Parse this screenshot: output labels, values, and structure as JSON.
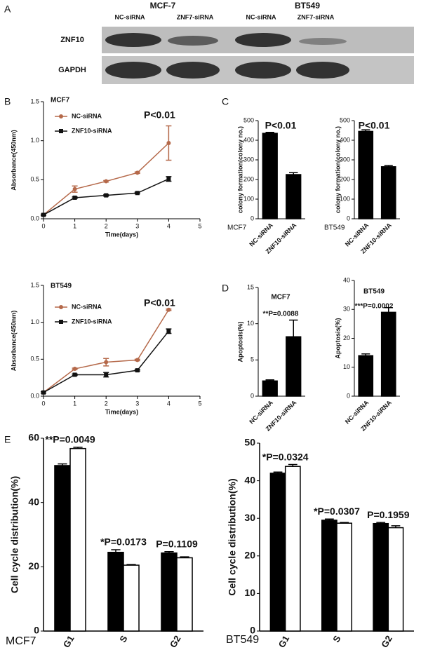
{
  "panel_labels": [
    "A",
    "B",
    "C",
    "D",
    "E"
  ],
  "blot": {
    "groups": [
      "MCF-7",
      "BT549"
    ],
    "lanes": [
      "NC-siRNA",
      "ZNF7-siRNA",
      "NC-siRNA",
      "ZNF7-siRNA"
    ],
    "rows": [
      "ZNF10",
      "GAPDH"
    ]
  },
  "chart_data": [
    {
      "type": "line",
      "title": "MCF7",
      "annotation": "P<0.01",
      "x_label": "Time(days)",
      "y_label": "Absorbance(450nm)",
      "x": [
        0,
        1,
        2,
        3,
        4
      ],
      "xlim": [
        0,
        5
      ],
      "xticks": [
        0,
        1,
        2,
        3,
        4,
        5
      ],
      "ylim": [
        0,
        1.5
      ],
      "yticks": [
        {
          "value": 0,
          "label": "0.0"
        },
        0.5,
        {
          "value": 1,
          "label": "1.0"
        },
        1.5
      ],
      "series": [
        {
          "name": "NC-siRNA",
          "color": "#b5694a",
          "marker": "circle",
          "values": [
            0.05,
            0.38,
            0.48,
            0.59,
            0.97
          ],
          "errors": [
            0.01,
            0.04,
            0.01,
            0.01,
            0.22
          ]
        },
        {
          "name": "ZNF10-siRNA",
          "color": "#111111",
          "marker": "square",
          "values": [
            0.05,
            0.27,
            0.3,
            0.33,
            0.51
          ],
          "errors": [
            0.01,
            0.01,
            0.01,
            0.01,
            0.03
          ]
        }
      ]
    },
    {
      "type": "line",
      "title": "BT549",
      "annotation": "P<0.01",
      "x_label": "Time(days)",
      "y_label": "Absorbance(450nm)",
      "x": [
        0,
        1,
        2,
        3,
        4
      ],
      "xlim": [
        0,
        5
      ],
      "xticks": [
        0,
        1,
        2,
        3,
        4,
        5
      ],
      "ylim": [
        0,
        1.5
      ],
      "yticks": [
        {
          "value": 0,
          "label": "0.0"
        },
        0.5,
        {
          "value": 1,
          "label": "1.0"
        },
        1.5
      ],
      "series": [
        {
          "name": "NC-siRNA",
          "color": "#b5694a",
          "marker": "circle",
          "values": [
            0.05,
            0.37,
            0.46,
            0.49,
            1.17
          ],
          "errors": [
            0.01,
            0.01,
            0.05,
            0.01,
            0.01
          ]
        },
        {
          "name": "ZNF10-siRNA",
          "color": "#111111",
          "marker": "square",
          "values": [
            0.05,
            0.29,
            0.29,
            0.35,
            0.88
          ],
          "errors": [
            0.01,
            0.01,
            0.03,
            0.01,
            0.03
          ]
        }
      ]
    },
    {
      "type": "bar",
      "annotation": "P<0.01",
      "cell_label": "MCF7",
      "y_label": "colony formation(colony no.)",
      "categories": [
        "NC-siRNA",
        "ZNF10-siRNA"
      ],
      "values": [
        435,
        225
      ],
      "errors": [
        5,
        10
      ],
      "color": "#000000",
      "ylim": [
        0,
        500
      ],
      "yticks": [
        0,
        100,
        200,
        300,
        400,
        500
      ]
    },
    {
      "type": "bar",
      "annotation": "P<0.01",
      "cell_label": "BT549",
      "y_label": "colony formation(colony no.)",
      "categories": [
        "NC-siRNA",
        "ZNF10-siRNA"
      ],
      "values": [
        445,
        265
      ],
      "errors": [
        8,
        6
      ],
      "color": "#000000",
      "ylim": [
        0,
        500
      ],
      "yticks": [
        0,
        100,
        200,
        300,
        400,
        500
      ]
    },
    {
      "type": "bar",
      "title": "MCF7",
      "annotation": "**P=0.0088",
      "y_label": "Apoptosis(%)",
      "categories": [
        "NC-siRNA",
        "ZNF10-siRNA"
      ],
      "values": [
        2.1,
        8.2
      ],
      "errors": [
        0.15,
        2.3
      ],
      "color": "#000000",
      "ylim": [
        0,
        15
      ],
      "yticks": [
        0,
        5,
        10,
        15
      ]
    },
    {
      "type": "bar",
      "title": "BT549",
      "annotation": "***P=0.0002",
      "y_label": "Apoptosis(%)",
      "categories": [
        "NC-siRNA",
        "ZNF10-siRNA"
      ],
      "values": [
        14,
        29
      ],
      "errors": [
        0.6,
        1.6
      ],
      "color": "#000000",
      "ylim": [
        0,
        40
      ],
      "yticks": [
        0,
        10,
        20,
        30,
        40
      ]
    },
    {
      "type": "grouped_bar",
      "cell_label": "MCF7",
      "y_label": "Cell cycle distribution(%)",
      "categories": [
        "G1",
        "S",
        "G2"
      ],
      "annotations": [
        "**P=0.0049",
        "*P=0.0173",
        "P=0.1109"
      ],
      "ylim": [
        0,
        60
      ],
      "yticks": [
        0,
        20,
        40,
        60
      ],
      "series": [
        {
          "color": "#000000",
          "values": [
            51.5,
            24.5,
            24.3
          ],
          "errors": [
            0.5,
            0.8,
            0.4
          ]
        },
        {
          "color": "#ffffff",
          "values": [
            56.8,
            20.5,
            22.8
          ],
          "errors": [
            0.4,
            0.2,
            0.3
          ]
        }
      ]
    },
    {
      "type": "grouped_bar",
      "cell_label": "BT549",
      "y_label": "Cell cycle distribution(%)",
      "categories": [
        "G1",
        "S",
        "G2"
      ],
      "annotations": [
        "*P=0.0324",
        "*P=0.0307",
        "P=0.1959"
      ],
      "ylim": [
        0,
        50
      ],
      "yticks": [
        0,
        10,
        20,
        30,
        40,
        50
      ],
      "series": [
        {
          "color": "#000000",
          "values": [
            42,
            29.5,
            28.6
          ],
          "errors": [
            0.3,
            0.3,
            0.3
          ]
        },
        {
          "color": "#ffffff",
          "values": [
            43.8,
            28.7,
            27.5
          ],
          "errors": [
            0.5,
            0.2,
            0.5
          ]
        }
      ]
    }
  ]
}
